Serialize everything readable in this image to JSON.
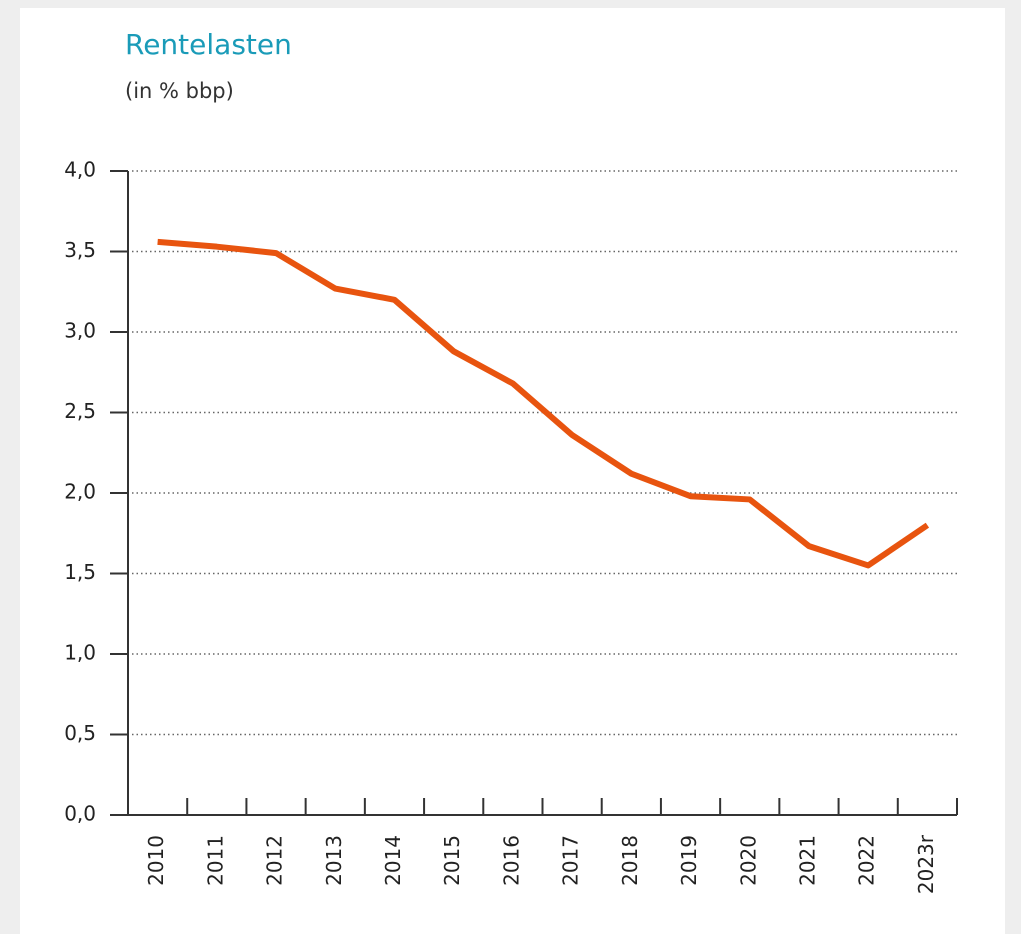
{
  "chart_data": {
    "type": "line",
    "title": "Rentelasten",
    "subtitle": "(in % bbp)",
    "categories": [
      "2010",
      "2011",
      "2012",
      "2013",
      "2014",
      "2015",
      "2016",
      "2017",
      "2018",
      "2019",
      "2020",
      "2021",
      "2022",
      "2023r"
    ],
    "series": [
      {
        "name": "Rentelasten",
        "color": "#e8540f",
        "values": [
          3.56,
          3.53,
          3.49,
          3.27,
          3.2,
          2.88,
          2.68,
          2.36,
          2.12,
          1.98,
          1.96,
          1.67,
          1.55,
          1.8
        ]
      }
    ],
    "ylim": [
      0,
      4
    ],
    "yticks": [
      {
        "value": 0,
        "label": "0,0"
      },
      {
        "value": 0.5,
        "label": "0,5"
      },
      {
        "value": 1,
        "label": "1,0"
      },
      {
        "value": 1.5,
        "label": "1,5"
      },
      {
        "value": 2,
        "label": "2,0"
      },
      {
        "value": 2.5,
        "label": "2,5"
      },
      {
        "value": 3,
        "label": "3,0"
      },
      {
        "value": 3.5,
        "label": "3,5"
      },
      {
        "value": 4,
        "label": "4,0"
      }
    ],
    "grid": true
  }
}
